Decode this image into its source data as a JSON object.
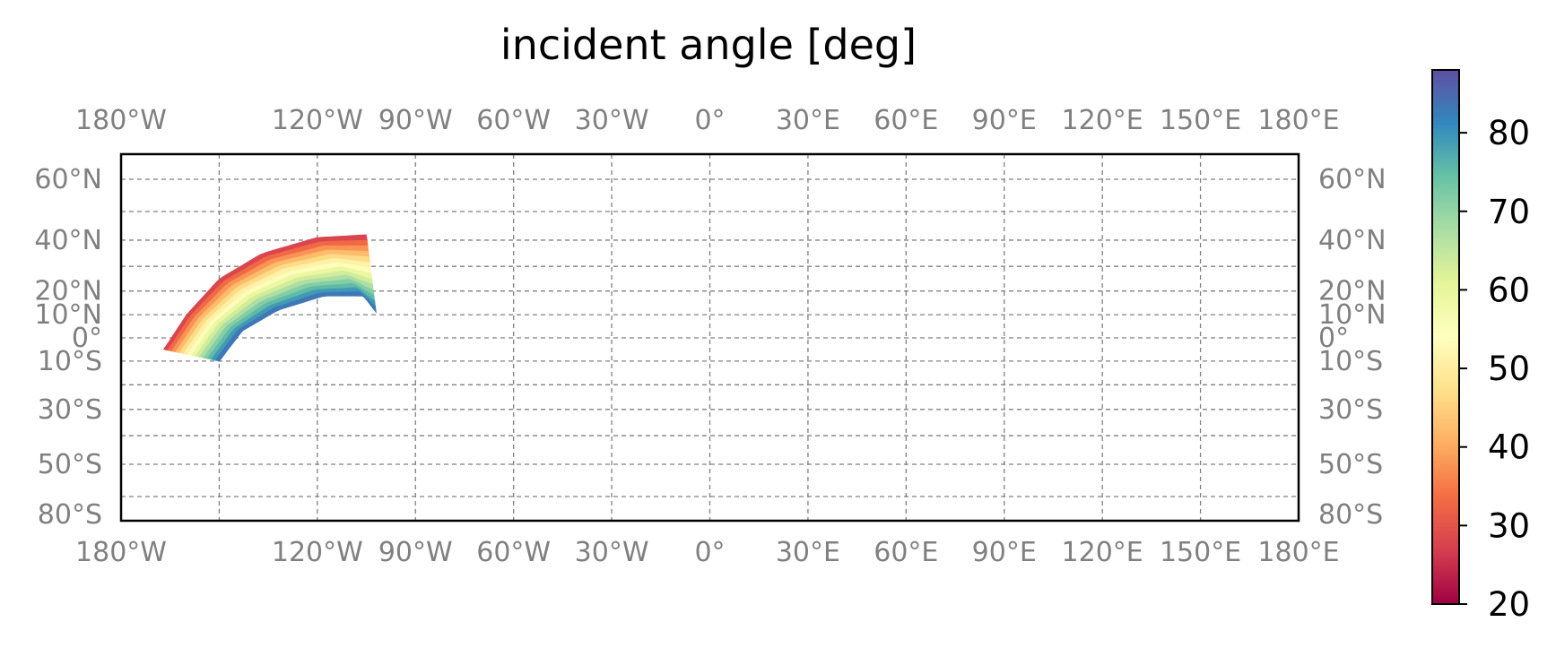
{
  "title": "incident angle [deg]",
  "map": {
    "projection": "Miller",
    "lon_labels": [
      "180°W",
      "120°W",
      "90°W",
      "60°W",
      "30°W",
      "0°",
      "30°E",
      "60°E",
      "90°E",
      "120°E",
      "150°E",
      "180°E"
    ],
    "lat_labels": [
      "60°N",
      "40°N",
      "20°N",
      "10°N",
      "0°",
      "10°S",
      "30°S",
      "50°S",
      "80°S"
    ],
    "gridlines": "dashed gray",
    "swath": {
      "description_values": "incident angle increases from ~25° on the outer (north-west) edge to ~85° on the inner (south-east) edge",
      "outer_edge": [
        [
          -167,
          -5
        ],
        [
          -160,
          10
        ],
        [
          -150,
          25
        ],
        [
          -137,
          35
        ],
        [
          -120,
          41
        ],
        [
          -105,
          42
        ]
      ],
      "inner_edge": [
        [
          -150,
          -10
        ],
        [
          -143,
          3
        ],
        [
          -132,
          12
        ],
        [
          -118,
          18
        ],
        [
          -106,
          18
        ],
        [
          -102,
          11
        ]
      ],
      "value_range": [
        25,
        85
      ]
    }
  },
  "colorbar": {
    "colormap": "Spectral",
    "min": 20,
    "max": 88,
    "ticks": [
      "20",
      "30",
      "40",
      "50",
      "60",
      "70",
      "80"
    ],
    "colors": [
      "#9e0142",
      "#d53e4f",
      "#f46d43",
      "#fdae61",
      "#fee08b",
      "#ffffbf",
      "#e6f598",
      "#abdda4",
      "#66c2a5",
      "#3288bd",
      "#5e4fa2"
    ]
  }
}
